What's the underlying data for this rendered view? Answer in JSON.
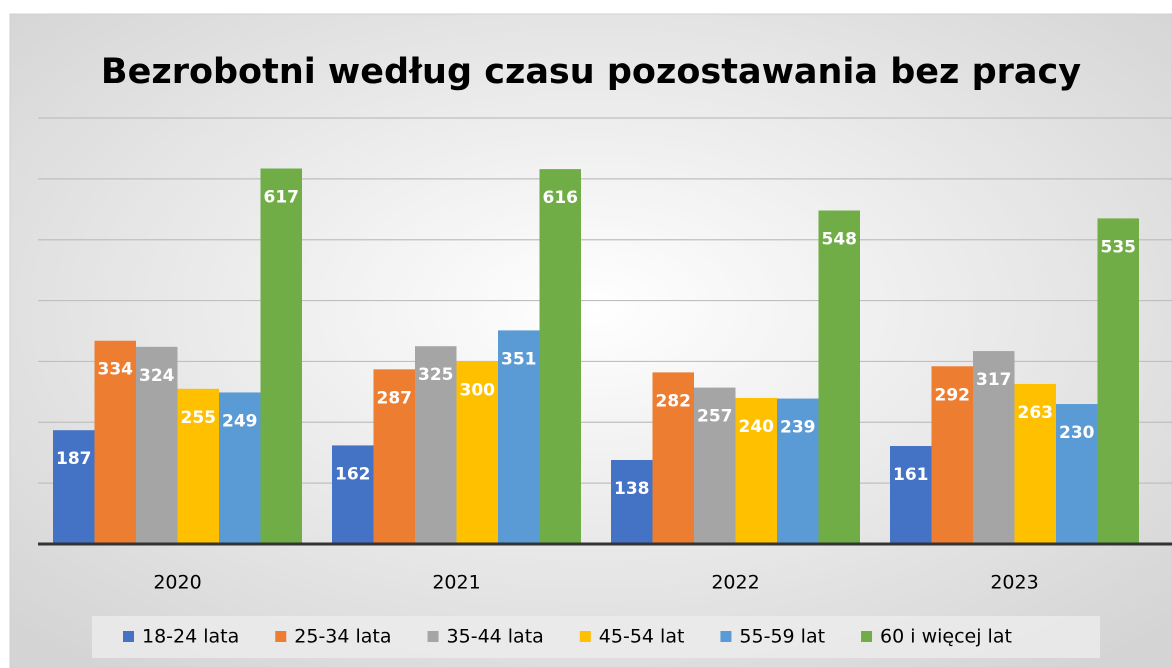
{
  "chart_data": {
    "type": "bar",
    "title": "Bezrobotni  według czasu  pozostawania  bez pracy",
    "categories": [
      "2020",
      "2021",
      "2022",
      "2023"
    ],
    "series": [
      {
        "name": "18-24 lata",
        "color": "#4472c4",
        "values": [
          187,
          162,
          138,
          161
        ]
      },
      {
        "name": "25-34 lata",
        "color": "#ed7d31",
        "values": [
          334,
          287,
          282,
          292
        ]
      },
      {
        "name": "35-44 lata",
        "color": "#a5a5a5",
        "values": [
          324,
          325,
          257,
          317
        ]
      },
      {
        "name": "45-54 lat",
        "color": "#ffc000",
        "values": [
          255,
          300,
          240,
          263
        ]
      },
      {
        "name": "55-59 lat",
        "color": "#5b9bd5",
        "values": [
          249,
          351,
          239,
          230
        ]
      },
      {
        "name": "60 i więcej lat",
        "color": "#70ad47",
        "values": [
          617,
          616,
          548,
          535
        ]
      }
    ],
    "ylim": [
      0,
      700
    ],
    "yticks": [
      0,
      100,
      200,
      300,
      400,
      500,
      600,
      700
    ],
    "grid": true,
    "legend": "bottom"
  }
}
